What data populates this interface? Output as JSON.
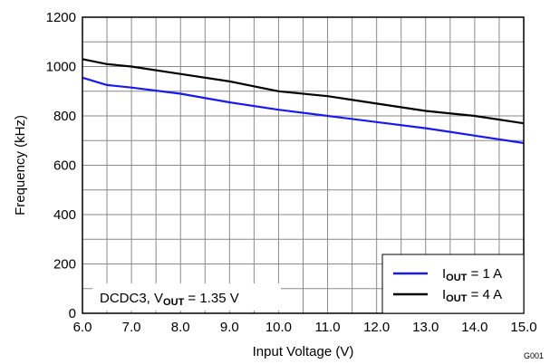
{
  "chart_data": {
    "type": "line",
    "xlabel": "Input Voltage (V)",
    "ylabel": "Frequency (kHz)",
    "xlim": [
      6.0,
      15.0
    ],
    "ylim": [
      0,
      1200
    ],
    "x_ticks": [
      "6.0",
      "7.0",
      "8.0",
      "9.0",
      "10.0",
      "11.0",
      "12.0",
      "13.0",
      "14.0",
      "15.0"
    ],
    "y_ticks": [
      "0",
      "200",
      "400",
      "600",
      "800",
      "1000",
      "1200"
    ],
    "grid": "on",
    "legend_position": "bottom-right",
    "annotation_main": "DCDC3, V",
    "annotation_sub": "OUT",
    "annotation_tail": " = 1.35 V",
    "figure_id": "G001",
    "series": [
      {
        "name_main": "I",
        "name_sub": "OUT",
        "name_tail": " = 1 A",
        "color": "#1a1aee",
        "points": [
          [
            6.0,
            955
          ],
          [
            6.5,
            925
          ],
          [
            7.0,
            915
          ],
          [
            8.0,
            890
          ],
          [
            9.0,
            855
          ],
          [
            10.0,
            825
          ],
          [
            11.0,
            800
          ],
          [
            12.0,
            775
          ],
          [
            13.0,
            750
          ],
          [
            14.0,
            720
          ],
          [
            15.0,
            690
          ]
        ]
      },
      {
        "name_main": "I",
        "name_sub": "OUT",
        "name_tail": " = 4 A",
        "color": "#000000",
        "points": [
          [
            6.0,
            1030
          ],
          [
            6.5,
            1010
          ],
          [
            7.0,
            1000
          ],
          [
            8.0,
            970
          ],
          [
            9.0,
            940
          ],
          [
            10.0,
            900
          ],
          [
            11.0,
            880
          ],
          [
            12.0,
            850
          ],
          [
            13.0,
            820
          ],
          [
            14.0,
            800
          ],
          [
            15.0,
            770
          ]
        ]
      }
    ]
  }
}
